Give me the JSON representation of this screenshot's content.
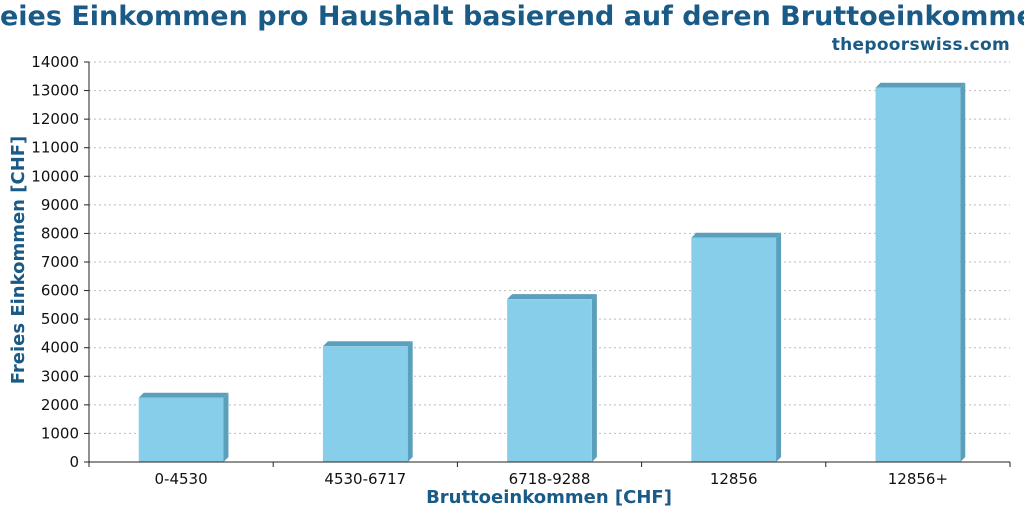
{
  "chart_data": {
    "type": "bar",
    "title": "Freies Einkommen pro Haushalt basierend auf deren Bruttoeinkommen",
    "source": "thepoorswiss.com",
    "xlabel": "Bruttoeinkommen [CHF]",
    "ylabel": "Freies Einkommen [CHF]",
    "categories": [
      "0-4530",
      "4530-6717",
      "6718-9288",
      "12856",
      "12856+"
    ],
    "values": [
      2250,
      4050,
      5700,
      7850,
      13100
    ],
    "ylim": [
      0,
      14000
    ],
    "yticks": [
      0,
      1000,
      2000,
      3000,
      4000,
      5000,
      6000,
      7000,
      8000,
      9000,
      10000,
      11000,
      12000,
      13000,
      14000
    ],
    "grid": true,
    "legend": "none",
    "colors": {
      "bar_front": "#87ceeb",
      "bar_side": "#5aa0bd",
      "title": "#1a5a86",
      "grid": "#bbbbbb"
    }
  }
}
